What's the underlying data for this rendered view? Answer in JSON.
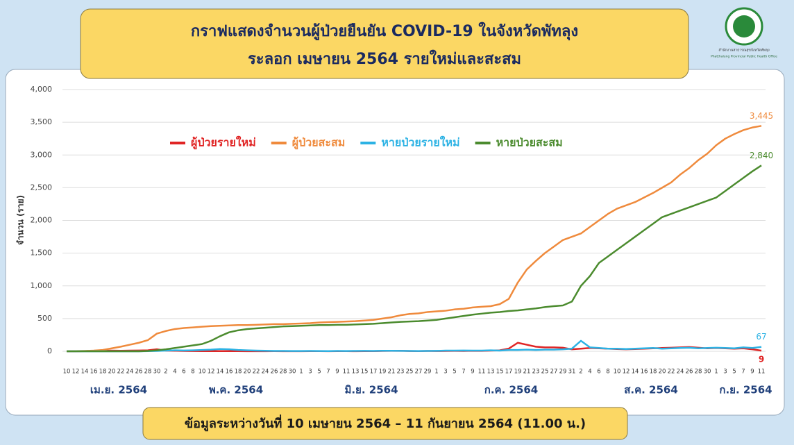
{
  "logo": {
    "text_th": "สำนักงานสาธารณสุขจังหวัดพัทลุง",
    "text_en": "Phatthalung Provincial Public Health Office"
  },
  "footer": "ข้อมูลระหว่างวันที่ 10 เมษายน 2564 – 11 กันยายน 2564 (11.00 น.)",
  "chart_data": {
    "type": "line",
    "title": "กราฟแสดงจำนวนผู้ป่วยยืนยัน COVID-19 ในจังหวัดพัทลุง",
    "subtitle": "ระลอก เมษายน 2564 รายใหม่และสะสม",
    "y_label": "จำนวน (ราย)",
    "months": [
      "เม.ย. 2564",
      "พ.ค. 2564",
      "มิ.ย. 2564",
      "ก.ค. 2564",
      "ส.ค. 2564",
      "ก.ย. 2564"
    ],
    "categories": [
      "10",
      "12",
      "14",
      "16",
      "18",
      "20",
      "22",
      "24",
      "26",
      "28",
      "30",
      "2",
      "4",
      "6",
      "8",
      "10",
      "12",
      "14",
      "16",
      "18",
      "20",
      "22",
      "24",
      "26",
      "28",
      "30",
      "1",
      "3",
      "5",
      "7",
      "9",
      "11",
      "13",
      "15",
      "17",
      "19",
      "21",
      "23",
      "25",
      "27",
      "29",
      "1",
      "3",
      "5",
      "7",
      "9",
      "11",
      "13",
      "15",
      "17",
      "19",
      "21",
      "23",
      "25",
      "27",
      "29",
      "31",
      "2",
      "4",
      "6",
      "8",
      "10",
      "12",
      "14",
      "16",
      "18",
      "20",
      "22",
      "24",
      "26",
      "28",
      "30",
      "1",
      "3",
      "5",
      "7",
      "9",
      "11"
    ],
    "ylim": [
      0,
      4000
    ],
    "yticks": [
      0,
      500,
      {
        "value": 1000,
        "label": "1,000"
      },
      {
        "value": 1500,
        "label": "1,500"
      },
      {
        "value": 2000,
        "label": "2,000"
      },
      {
        "value": 2500,
        "label": "2,500"
      },
      {
        "value": 3000,
        "label": "3,000"
      },
      {
        "value": 3500,
        "label": "3,500"
      },
      {
        "value": 4000,
        "label": "4,000"
      }
    ],
    "grid": true,
    "series": [
      {
        "name": "ผู้ป่วยรายใหม่",
        "color": "#e02424",
        "values": [
          0,
          0,
          2,
          3,
          5,
          10,
          8,
          10,
          12,
          15,
          30,
          10,
          8,
          5,
          4,
          3,
          3,
          2,
          2,
          2,
          1,
          1,
          1,
          2,
          1,
          1,
          1,
          2,
          2,
          1,
          2,
          2,
          1,
          2,
          3,
          5,
          6,
          8,
          4,
          3,
          5,
          4,
          5,
          6,
          5,
          8,
          6,
          10,
          15,
          40,
          130,
          100,
          70,
          60,
          60,
          55,
          30,
          40,
          50,
          45,
          40,
          35,
          30,
          35,
          40,
          45,
          50,
          55,
          60,
          65,
          55,
          45,
          50,
          45,
          40,
          45,
          30,
          9
        ]
      },
      {
        "name": "ผู้ป่วยสะสม",
        "color": "#ef8a3c",
        "end_label": "3,445",
        "values": [
          0,
          2,
          5,
          10,
          20,
          45,
          70,
          100,
          130,
          170,
          270,
          310,
          340,
          355,
          365,
          375,
          385,
          390,
          395,
          400,
          400,
          405,
          410,
          415,
          415,
          420,
          425,
          430,
          440,
          445,
          450,
          455,
          460,
          470,
          480,
          500,
          520,
          550,
          570,
          580,
          600,
          610,
          620,
          640,
          650,
          670,
          680,
          690,
          720,
          800,
          1050,
          1250,
          1380,
          1500,
          1600,
          1700,
          1750,
          1800,
          1900,
          2000,
          2100,
          2180,
          2230,
          2280,
          2350,
          2420,
          2500,
          2580,
          2700,
          2800,
          2920,
          3020,
          3150,
          3250,
          3320,
          3380,
          3420,
          3445
        ]
      },
      {
        "name": "หายป่วยรายใหม่",
        "color": "#2cb2e4",
        "values": [
          0,
          0,
          0,
          0,
          0,
          0,
          0,
          0,
          0,
          3,
          5,
          10,
          15,
          12,
          15,
          20,
          25,
          35,
          30,
          20,
          15,
          10,
          8,
          5,
          5,
          4,
          4,
          5,
          4,
          3,
          5,
          4,
          5,
          6,
          5,
          8,
          8,
          6,
          5,
          4,
          5,
          6,
          10,
          10,
          12,
          10,
          10,
          15,
          10,
          20,
          20,
          25,
          20,
          25,
          25,
          30,
          40,
          160,
          60,
          50,
          40,
          40,
          35,
          40,
          45,
          50,
          40,
          45,
          50,
          55,
          45,
          50,
          55,
          50,
          45,
          60,
          50,
          67
        ]
      },
      {
        "name": "หายป่วยสะสม",
        "color": "#4b8b2e",
        "end_label": "2,840",
        "values": [
          0,
          0,
          0,
          0,
          0,
          0,
          0,
          0,
          0,
          5,
          15,
          30,
          50,
          70,
          90,
          110,
          160,
          230,
          290,
          320,
          340,
          350,
          360,
          370,
          380,
          385,
          390,
          395,
          400,
          400,
          405,
          405,
          410,
          415,
          420,
          430,
          440,
          450,
          455,
          460,
          470,
          480,
          500,
          520,
          540,
          560,
          575,
          590,
          600,
          615,
          625,
          640,
          655,
          675,
          690,
          700,
          760,
          1000,
          1150,
          1350,
          1450,
          1550,
          1650,
          1750,
          1850,
          1950,
          2050,
          2100,
          2150,
          2200,
          2250,
          2300,
          2350,
          2450,
          2550,
          2650,
          2750,
          2840
        ]
      }
    ]
  }
}
